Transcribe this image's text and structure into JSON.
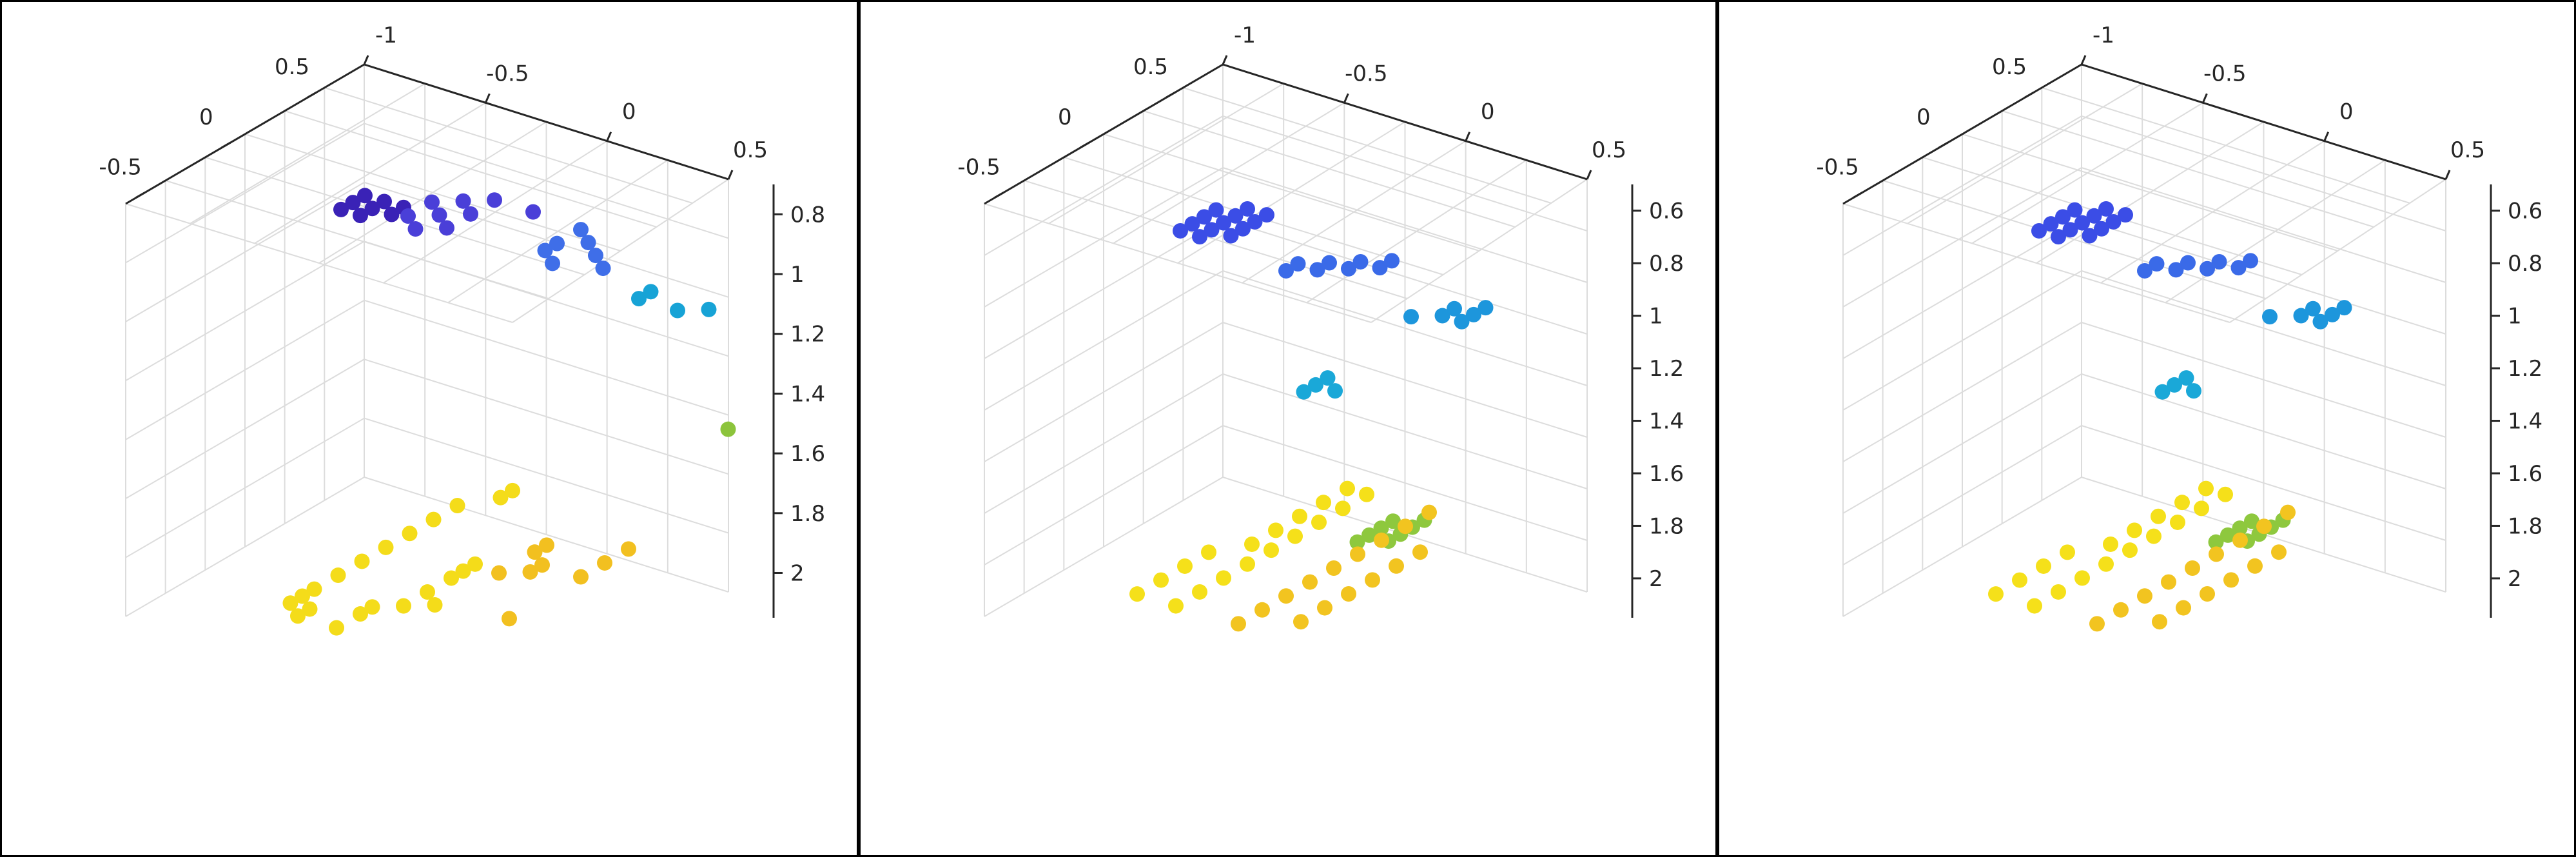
{
  "figure": {
    "background": "#ffffff",
    "frame_color": "#000000"
  },
  "chart_data": [
    {
      "type": "scatter",
      "projection": "3d",
      "grid": true,
      "colormap": "parula (color by z)",
      "x_ticks": [
        "-0.5",
        "0",
        "0.5"
      ],
      "y_ticks": [
        "-1",
        "-0.5",
        "0",
        "0.5"
      ],
      "z_ticks": [
        "0.8",
        "1",
        "1.2",
        "1.4",
        "1.6",
        "1.8",
        "2"
      ],
      "zlim": [
        0.7,
        2.15
      ],
      "z_reversed": true,
      "clusters": [
        {
          "color": "#3a22b6",
          "z": 0.78,
          "points": [
            [
              4,
              4
            ],
            [
              5,
              4
            ],
            [
              6,
              4
            ],
            [
              4,
              5
            ],
            [
              5,
              5
            ],
            [
              6,
              5
            ],
            [
              5,
              6
            ],
            [
              6,
              6
            ]
          ]
        },
        {
          "color": "#4a3fd8",
          "z": 0.88,
          "points": [
            [
              7,
              6
            ],
            [
              8,
              5
            ],
            [
              8,
              7
            ],
            [
              9,
              6
            ],
            [
              10,
              5
            ],
            [
              11,
              6
            ],
            [
              10,
              7
            ],
            [
              12,
              7
            ],
            [
              12,
              9
            ]
          ]
        },
        {
          "color": "#3f6ee8",
          "z": 1.04,
          "points": [
            [
              12,
              10
            ],
            [
              13,
              9
            ],
            [
              14,
              9
            ],
            [
              14,
              11
            ],
            [
              15,
              10
            ],
            [
              16,
              9
            ],
            [
              13,
              12
            ]
          ]
        },
        {
          "color": "#17a3d6",
          "z": 1.22,
          "points": [
            [
              16,
              12
            ],
            [
              17,
              12
            ],
            [
              16,
              14
            ],
            [
              17,
              15
            ]
          ]
        },
        {
          "color": "#8cc43c",
          "z": 1.62,
          "points": [
            [
              17,
              16
            ]
          ]
        },
        {
          "color": "#f4dc1a",
          "z": 2.18,
          "points": [
            [
              2,
              3
            ],
            [
              2,
              5
            ],
            [
              3,
              2
            ],
            [
              3,
              3
            ],
            [
              4,
              2
            ],
            [
              5,
              2
            ],
            [
              7,
              2
            ],
            [
              9,
              2
            ],
            [
              11,
              2
            ],
            [
              13,
              2
            ],
            [
              15,
              2
            ],
            [
              17,
              2
            ],
            [
              19,
              3
            ],
            [
              20,
              3
            ],
            [
              4,
              5
            ],
            [
              5,
              5
            ],
            [
              6,
              6
            ],
            [
              7,
              7
            ],
            [
              8,
              6
            ],
            [
              10,
              6
            ],
            [
              11,
              6
            ],
            [
              12,
              6
            ]
          ]
        },
        {
          "color": "#f2c020",
          "z": 2.26,
          "points": [
            [
              14,
              6
            ],
            [
              15,
              7
            ],
            [
              16,
              7
            ],
            [
              17,
              6
            ],
            [
              18,
              6
            ],
            [
              16,
              9
            ],
            [
              18,
              9
            ],
            [
              20,
              9
            ],
            [
              10,
              9
            ]
          ]
        }
      ]
    },
    {
      "type": "scatter",
      "projection": "3d",
      "grid": true,
      "colormap": "parula (color by z)",
      "x_ticks": [
        "-0.5",
        "0",
        "0.5"
      ],
      "y_ticks": [
        "-1",
        "-0.5",
        "0",
        "0.5"
      ],
      "z_ticks": [
        "0.6",
        "0.8",
        "1",
        "1.2",
        "1.4",
        "1.6",
        "1.8",
        "2"
      ],
      "zlim": [
        0.5,
        2.15
      ],
      "z_reversed": true,
      "clusters": [
        {
          "color": "#3b4de6",
          "z": 0.7,
          "points": [
            [
              4,
              3
            ],
            [
              5,
              3
            ],
            [
              6,
              3
            ],
            [
              7,
              3
            ],
            [
              8,
              4
            ],
            [
              4,
              4
            ],
            [
              5,
              4
            ],
            [
              6,
              4
            ],
            [
              7,
              4
            ],
            [
              5,
              5
            ],
            [
              6,
              5
            ],
            [
              7,
              5
            ],
            [
              8,
              5
            ]
          ]
        },
        {
          "color": "#3a6ae8",
          "z": 0.9,
          "points": [
            [
              8,
              6
            ],
            [
              9,
              6
            ],
            [
              10,
              7
            ],
            [
              9,
              7
            ],
            [
              11,
              8
            ],
            [
              10,
              8
            ],
            [
              12,
              9
            ],
            [
              11,
              9
            ]
          ]
        },
        {
          "color": "#1d96dc",
          "z": 1.1,
          "points": [
            [
              12,
              10
            ],
            [
              13,
              11
            ],
            [
              14,
              11
            ],
            [
              13,
              12
            ],
            [
              14,
              12
            ],
            [
              15,
              12
            ]
          ]
        },
        {
          "color": "#1aa8d8",
          "z": 1.15,
          "points": [
            [
              3,
              10
            ],
            [
              4,
              10
            ],
            [
              5,
              10
            ],
            [
              4,
              11
            ]
          ]
        },
        {
          "color": "#8ec83e",
          "z": 1.6,
          "points": [
            [
              1,
              14
            ],
            [
              2,
              14
            ],
            [
              3,
              14
            ],
            [
              4,
              14
            ],
            [
              5,
              15
            ],
            [
              2,
              15
            ],
            [
              3,
              15
            ],
            [
              4,
              15
            ]
          ]
        },
        {
          "color": "#f5e01a",
          "z": 2.12,
          "points": [
            [
              2,
              2
            ],
            [
              4,
              2
            ],
            [
              6,
              2
            ],
            [
              8,
              2
            ],
            [
              10,
              3
            ],
            [
              12,
              3
            ],
            [
              14,
              3
            ],
            [
              16,
              3
            ],
            [
              18,
              3
            ],
            [
              2,
              4
            ],
            [
              4,
              4
            ],
            [
              6,
              4
            ],
            [
              8,
              4
            ],
            [
              10,
              4
            ],
            [
              12,
              4
            ],
            [
              14,
              4
            ],
            [
              16,
              4
            ],
            [
              18,
              4
            ]
          ]
        },
        {
          "color": "#f2c420",
          "z": 2.2,
          "points": [
            [
              4,
              6
            ],
            [
              6,
              6
            ],
            [
              8,
              6
            ],
            [
              10,
              6
            ],
            [
              12,
              6
            ],
            [
              14,
              6
            ],
            [
              16,
              6
            ],
            [
              18,
              6
            ],
            [
              20,
              6
            ],
            [
              6,
              8
            ],
            [
              8,
              8
            ],
            [
              10,
              8
            ],
            [
              12,
              8
            ],
            [
              14,
              8
            ],
            [
              16,
              8
            ]
          ]
        }
      ]
    },
    {
      "type": "scatter",
      "projection": "3d",
      "grid": true,
      "colormap": "parula (color by z)",
      "x_ticks": [
        "-0.5",
        "0",
        "0.5"
      ],
      "y_ticks": [
        "-1",
        "-0.5",
        "0",
        "0.5"
      ],
      "z_ticks": [
        "0.6",
        "0.8",
        "1",
        "1.2",
        "1.4",
        "1.6",
        "1.8",
        "2"
      ],
      "zlim": [
        0.5,
        2.15
      ],
      "z_reversed": true,
      "clusters": [
        {
          "color": "#3b4de6",
          "z": 0.7,
          "points": [
            [
              4,
              3
            ],
            [
              5,
              3
            ],
            [
              6,
              3
            ],
            [
              7,
              3
            ],
            [
              8,
              4
            ],
            [
              4,
              4
            ],
            [
              5,
              4
            ],
            [
              6,
              4
            ],
            [
              7,
              4
            ],
            [
              5,
              5
            ],
            [
              6,
              5
            ],
            [
              7,
              5
            ],
            [
              8,
              5
            ]
          ]
        },
        {
          "color": "#3a6ae8",
          "z": 0.9,
          "points": [
            [
              8,
              6
            ],
            [
              9,
              6
            ],
            [
              10,
              7
            ],
            [
              9,
              7
            ],
            [
              11,
              8
            ],
            [
              10,
              8
            ],
            [
              12,
              9
            ],
            [
              11,
              9
            ]
          ]
        },
        {
          "color": "#1d96dc",
          "z": 1.1,
          "points": [
            [
              12,
              10
            ],
            [
              13,
              11
            ],
            [
              14,
              11
            ],
            [
              13,
              12
            ],
            [
              14,
              12
            ],
            [
              15,
              12
            ]
          ]
        },
        {
          "color": "#1aa8d8",
          "z": 1.15,
          "points": [
            [
              3,
              10
            ],
            [
              4,
              10
            ],
            [
              5,
              10
            ],
            [
              4,
              11
            ]
          ]
        },
        {
          "color": "#8ec83e",
          "z": 1.6,
          "points": [
            [
              1,
              14
            ],
            [
              2,
              14
            ],
            [
              3,
              14
            ],
            [
              4,
              14
            ],
            [
              5,
              15
            ],
            [
              2,
              15
            ],
            [
              3,
              15
            ],
            [
              4,
              15
            ]
          ]
        },
        {
          "color": "#f5e01a",
          "z": 2.12,
          "points": [
            [
              2,
              2
            ],
            [
              4,
              2
            ],
            [
              6,
              2
            ],
            [
              8,
              2
            ],
            [
              10,
              3
            ],
            [
              12,
              3
            ],
            [
              14,
              3
            ],
            [
              16,
              3
            ],
            [
              18,
              3
            ],
            [
              2,
              4
            ],
            [
              4,
              4
            ],
            [
              6,
              4
            ],
            [
              8,
              4
            ],
            [
              10,
              4
            ],
            [
              12,
              4
            ],
            [
              14,
              4
            ],
            [
              16,
              4
            ],
            [
              18,
              4
            ]
          ]
        },
        {
          "color": "#f2c420",
          "z": 2.2,
          "points": [
            [
              4,
              6
            ],
            [
              6,
              6
            ],
            [
              8,
              6
            ],
            [
              10,
              6
            ],
            [
              12,
              6
            ],
            [
              14,
              6
            ],
            [
              16,
              6
            ],
            [
              18,
              6
            ],
            [
              20,
              6
            ],
            [
              6,
              8
            ],
            [
              8,
              8
            ],
            [
              10,
              8
            ],
            [
              12,
              8
            ],
            [
              14,
              8
            ],
            [
              16,
              8
            ]
          ]
        }
      ]
    }
  ]
}
